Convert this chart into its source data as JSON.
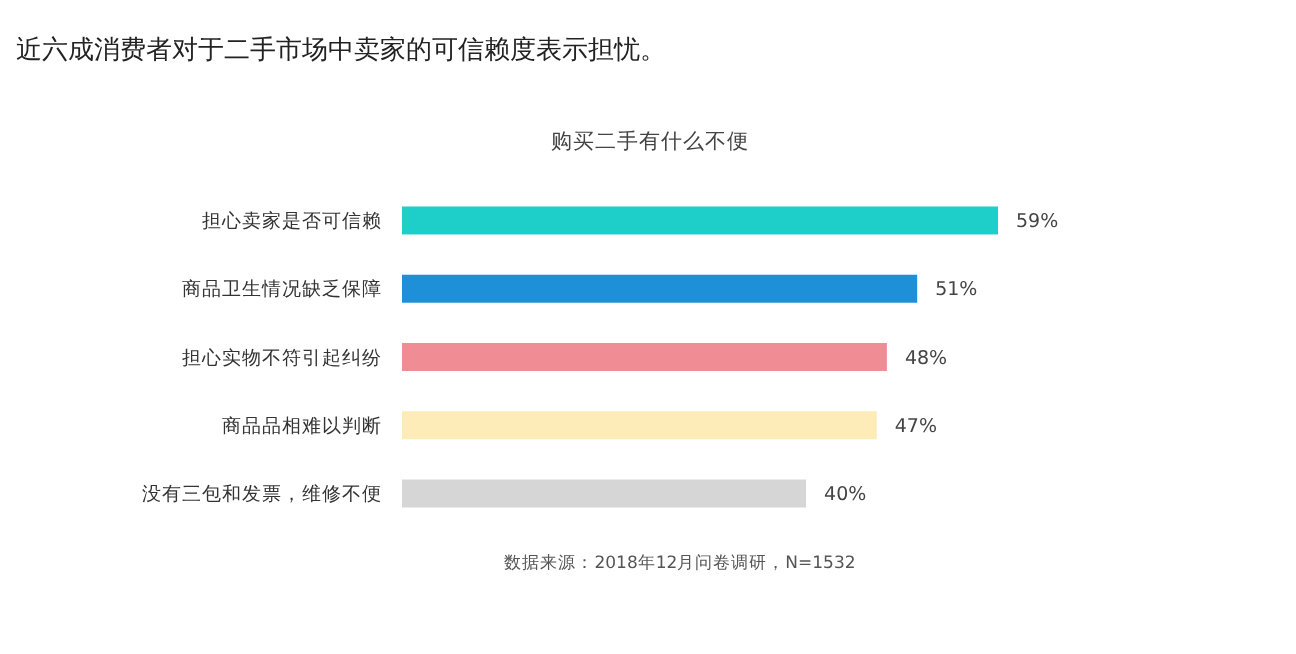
{
  "chart_data": {
    "type": "bar",
    "orientation": "horizontal",
    "title": "近六成消费者对于二手市场中卖家的可信赖度表示担忧。",
    "subtitle": "购买二手有什么不便",
    "categories": [
      "担心卖家是否可信赖",
      "商品卫生情况缺乏保障",
      "担心实物不符引起纠纷",
      "商品品相难以判断",
      "没有三包和发票，维修不便"
    ],
    "values": [
      59,
      51,
      48,
      47,
      40
    ],
    "colors": [
      "#1ecfc9",
      "#1e90d8",
      "#f08c94",
      "#fdebb8",
      "#d6d6d6"
    ],
    "value_labels": [
      "59%",
      "51%",
      "48%",
      "47%",
      "40%"
    ],
    "annotations": [
      "数据来源：2018年12月问卷调研，N=1532"
    ]
  }
}
